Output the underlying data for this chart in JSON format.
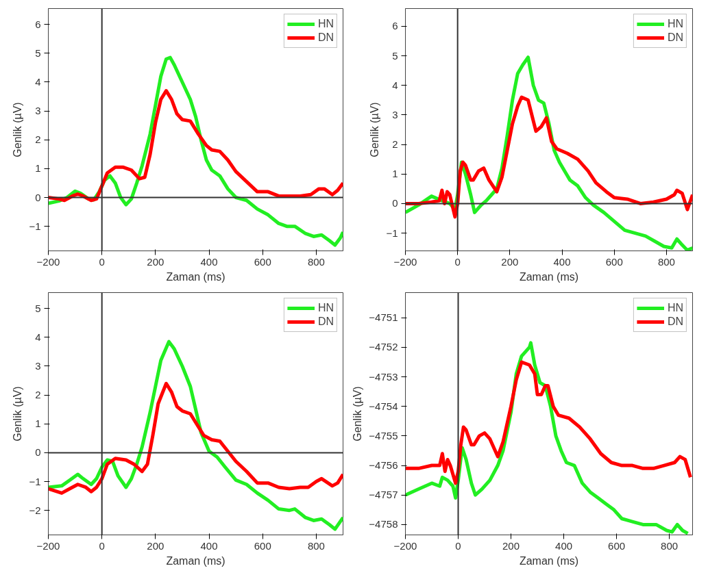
{
  "chart_data": [
    {
      "type": "line",
      "xlabel": "Zaman (ms)",
      "ylabel": "Genlik (µV)",
      "xlim": [
        -200,
        900
      ],
      "ylim": [
        -1.85,
        6.55
      ],
      "xticks": [
        -200,
        0,
        200,
        400,
        600,
        800
      ],
      "yticks": [
        -1,
        0,
        1,
        2,
        3,
        4,
        5,
        6
      ],
      "grid": false,
      "legend": "top right",
      "ref_lines": [
        {
          "axis": "x",
          "value": 0,
          "color": "#333333"
        },
        {
          "axis": "y",
          "value": 0,
          "color": "#333333"
        }
      ],
      "series": [
        {
          "name": "HN",
          "color": "#22ee22",
          "x": [
            -200,
            -160,
            -130,
            -100,
            -80,
            -50,
            -30,
            -10,
            10,
            30,
            50,
            70,
            90,
            110,
            130,
            150,
            180,
            200,
            220,
            240,
            255,
            270,
            300,
            330,
            350,
            370,
            390,
            410,
            440,
            470,
            500,
            540,
            580,
            620,
            660,
            690,
            720,
            760,
            790,
            820,
            850,
            870,
            890,
            900
          ],
          "values": [
            -0.2,
            -0.12,
            0,
            0.22,
            0.15,
            -0.05,
            -0.08,
            0.2,
            0.6,
            0.75,
            0.5,
            0.0,
            -0.25,
            -0.05,
            0.5,
            1.1,
            2.2,
            3.2,
            4.2,
            4.8,
            4.85,
            4.6,
            4.0,
            3.4,
            2.8,
            2.0,
            1.3,
            0.95,
            0.75,
            0.3,
            0.0,
            -0.1,
            -0.4,
            -0.6,
            -0.9,
            -1.0,
            -1.0,
            -1.25,
            -1.35,
            -1.3,
            -1.5,
            -1.65,
            -1.4,
            -1.2
          ]
        },
        {
          "name": "DN",
          "color": "#ff0000",
          "x": [
            -200,
            -160,
            -140,
            -110,
            -90,
            -70,
            -40,
            -20,
            0,
            20,
            50,
            80,
            110,
            140,
            160,
            180,
            200,
            220,
            240,
            260,
            280,
            300,
            330,
            360,
            390,
            410,
            440,
            470,
            500,
            540,
            580,
            620,
            660,
            700,
            740,
            780,
            810,
            830,
            860,
            880,
            900
          ],
          "values": [
            0,
            -0.05,
            -0.1,
            0.05,
            0.12,
            0.05,
            -0.1,
            -0.05,
            0.4,
            0.85,
            1.05,
            1.05,
            0.95,
            0.65,
            0.7,
            1.5,
            2.6,
            3.4,
            3.7,
            3.4,
            2.9,
            2.7,
            2.65,
            2.2,
            1.8,
            1.65,
            1.6,
            1.3,
            0.9,
            0.55,
            0.2,
            0.2,
            0.05,
            0.05,
            0.05,
            0.1,
            0.3,
            0.3,
            0.1,
            0.25,
            0.5
          ]
        }
      ]
    },
    {
      "type": "line",
      "xlabel": "Zaman (ms)",
      "ylabel": "Genlik (µV)",
      "xlim": [
        -200,
        900
      ],
      "ylim": [
        -1.6,
        6.6
      ],
      "xticks": [
        -200,
        0,
        200,
        400,
        600,
        800
      ],
      "yticks": [
        -1,
        0,
        1,
        2,
        3,
        4,
        5,
        6
      ],
      "grid": false,
      "legend": "top right",
      "ref_lines": [
        {
          "axis": "x",
          "value": 0,
          "color": "#333333"
        },
        {
          "axis": "y",
          "value": 0,
          "color": "#333333"
        }
      ],
      "series": [
        {
          "name": "HN",
          "color": "#22ee22",
          "x": [
            -200,
            -150,
            -100,
            -60,
            -30,
            -10,
            0,
            15,
            30,
            50,
            65,
            90,
            110,
            130,
            150,
            170,
            190,
            210,
            230,
            250,
            270,
            290,
            310,
            330,
            350,
            370,
            390,
            410,
            430,
            460,
            490,
            520,
            560,
            600,
            640,
            680,
            720,
            760,
            790,
            820,
            840,
            860,
            880,
            900
          ],
          "values": [
            -0.3,
            -0.05,
            0.25,
            0.1,
            0.0,
            -0.2,
            0.3,
            1.4,
            1.0,
            0.3,
            -0.3,
            -0.05,
            0.1,
            0.3,
            0.5,
            1.2,
            2.3,
            3.5,
            4.4,
            4.7,
            4.95,
            4.0,
            3.5,
            3.4,
            2.7,
            1.8,
            1.4,
            1.1,
            0.8,
            0.6,
            0.2,
            -0.05,
            -0.3,
            -0.6,
            -0.9,
            -1.0,
            -1.1,
            -1.3,
            -1.45,
            -1.5,
            -1.2,
            -1.4,
            -1.58,
            -1.5
          ]
        },
        {
          "name": "DN",
          "color": "#ff0000",
          "x": [
            -200,
            -150,
            -100,
            -70,
            -60,
            -50,
            -40,
            -30,
            -10,
            0,
            10,
            20,
            30,
            50,
            60,
            80,
            100,
            120,
            150,
            170,
            190,
            210,
            230,
            245,
            270,
            290,
            300,
            320,
            340,
            360,
            380,
            420,
            460,
            500,
            530,
            570,
            600,
            650,
            700,
            750,
            800,
            830,
            840,
            860,
            880,
            900
          ],
          "values": [
            0.0,
            0.0,
            0.05,
            0.1,
            0.45,
            0.0,
            0.4,
            0.3,
            -0.45,
            0.0,
            1.1,
            1.4,
            1.3,
            0.8,
            0.8,
            1.1,
            1.2,
            0.8,
            0.4,
            0.9,
            1.8,
            2.7,
            3.3,
            3.6,
            3.5,
            2.8,
            2.45,
            2.6,
            2.9,
            2.1,
            1.85,
            1.7,
            1.5,
            1.1,
            0.7,
            0.4,
            0.2,
            0.15,
            0.0,
            0.05,
            0.15,
            0.3,
            0.45,
            0.35,
            -0.2,
            0.3
          ]
        }
      ]
    },
    {
      "type": "line",
      "xlabel": "Zaman (ms)",
      "ylabel": "Genlik (µV)",
      "xlim": [
        -200,
        900
      ],
      "ylim": [
        -2.85,
        5.55
      ],
      "xticks": [
        -200,
        0,
        200,
        400,
        600,
        800
      ],
      "yticks": [
        -2,
        -1,
        0,
        1,
        2,
        3,
        4,
        5
      ],
      "grid": false,
      "legend": "top right",
      "ref_lines": [
        {
          "axis": "x",
          "value": 0,
          "color": "#333333"
        },
        {
          "axis": "y",
          "value": 0,
          "color": "#333333"
        }
      ],
      "series": [
        {
          "name": "HN",
          "color": "#22ee22",
          "x": [
            -200,
            -150,
            -120,
            -90,
            -70,
            -40,
            -20,
            0,
            20,
            40,
            60,
            90,
            110,
            130,
            150,
            180,
            200,
            220,
            250,
            270,
            300,
            330,
            350,
            370,
            400,
            430,
            460,
            500,
            540,
            580,
            620,
            660,
            700,
            720,
            760,
            790,
            820,
            850,
            870,
            900
          ],
          "values": [
            -1.2,
            -1.15,
            -0.95,
            -0.75,
            -0.9,
            -1.1,
            -0.9,
            -0.5,
            -0.25,
            -0.3,
            -0.8,
            -1.2,
            -0.9,
            -0.4,
            0.2,
            1.4,
            2.3,
            3.2,
            3.85,
            3.6,
            3.0,
            2.3,
            1.5,
            0.7,
            0.05,
            -0.15,
            -0.5,
            -0.95,
            -1.1,
            -1.4,
            -1.65,
            -1.95,
            -2.0,
            -1.95,
            -2.25,
            -2.35,
            -2.3,
            -2.5,
            -2.65,
            -2.25
          ]
        },
        {
          "name": "DN",
          "color": "#ff0000",
          "x": [
            -200,
            -150,
            -120,
            -90,
            -60,
            -40,
            -20,
            0,
            20,
            50,
            90,
            120,
            150,
            170,
            190,
            210,
            240,
            260,
            280,
            300,
            330,
            360,
            380,
            410,
            440,
            470,
            500,
            540,
            580,
            620,
            660,
            700,
            740,
            770,
            800,
            820,
            860,
            880,
            900
          ],
          "values": [
            -1.25,
            -1.4,
            -1.25,
            -1.1,
            -1.2,
            -1.35,
            -1.2,
            -0.9,
            -0.4,
            -0.2,
            -0.25,
            -0.4,
            -0.65,
            -0.4,
            0.6,
            1.7,
            2.4,
            2.1,
            1.6,
            1.45,
            1.35,
            0.9,
            0.6,
            0.45,
            0.4,
            0.05,
            -0.3,
            -0.65,
            -1.05,
            -1.05,
            -1.2,
            -1.25,
            -1.2,
            -1.2,
            -1.0,
            -0.9,
            -1.15,
            -1.05,
            -0.75
          ]
        }
      ]
    },
    {
      "type": "line",
      "xlabel": "Zaman (ms)",
      "ylabel": "Genlik (µV)",
      "xlim": [
        -200,
        888
      ],
      "ylim": [
        -4758.35,
        -4750.15
      ],
      "xticks": [
        -200,
        0,
        200,
        400,
        600,
        800
      ],
      "yticks": [
        -4758,
        -4757,
        -4756,
        -4755,
        -4754,
        -4753,
        -4752,
        -4751
      ],
      "grid": false,
      "legend": "top right",
      "ref_lines": [
        {
          "axis": "x",
          "value": 0,
          "color": "#333333"
        }
      ],
      "series": [
        {
          "name": "HN",
          "color": "#22ee22",
          "x": [
            -200,
            -150,
            -100,
            -70,
            -60,
            -40,
            -20,
            -10,
            0,
            15,
            30,
            50,
            65,
            90,
            120,
            150,
            170,
            200,
            220,
            240,
            270,
            275,
            290,
            310,
            330,
            350,
            370,
            390,
            410,
            440,
            470,
            500,
            530,
            560,
            590,
            620,
            660,
            700,
            750,
            790,
            810,
            830,
            850,
            870
          ],
          "values": [
            -4757.0,
            -4756.8,
            -4756.6,
            -4756.7,
            -4756.4,
            -4756.5,
            -4756.7,
            -4757.1,
            -4756.5,
            -4755.4,
            -4755.8,
            -4756.6,
            -4757.0,
            -4756.8,
            -4756.5,
            -4756.0,
            -4755.5,
            -4754.2,
            -4752.9,
            -4752.3,
            -4752.0,
            -4751.85,
            -4752.6,
            -4753.2,
            -4753.3,
            -4754.0,
            -4755.0,
            -4755.5,
            -4755.9,
            -4756.0,
            -4756.6,
            -4756.9,
            -4757.1,
            -4757.3,
            -4757.5,
            -4757.8,
            -4757.9,
            -4758.0,
            -4758.0,
            -4758.2,
            -4758.25,
            -4758.0,
            -4758.2,
            -4758.3
          ]
        },
        {
          "name": "DN",
          "color": "#ff0000",
          "x": [
            -200,
            -150,
            -100,
            -70,
            -60,
            -50,
            -40,
            -30,
            -10,
            0,
            10,
            20,
            30,
            50,
            60,
            80,
            100,
            120,
            150,
            170,
            200,
            220,
            240,
            270,
            290,
            300,
            315,
            330,
            340,
            360,
            380,
            420,
            460,
            500,
            540,
            580,
            620,
            660,
            700,
            740,
            780,
            820,
            840,
            860,
            880
          ],
          "values": [
            -4756.1,
            -4756.1,
            -4756.0,
            -4756.0,
            -4755.6,
            -4756.2,
            -4755.8,
            -4756.0,
            -4756.6,
            -4756.2,
            -4755.3,
            -4754.7,
            -4754.8,
            -4755.3,
            -4755.3,
            -4755.0,
            -4754.9,
            -4755.1,
            -4755.7,
            -4755.2,
            -4754.0,
            -4753.1,
            -4752.5,
            -4752.6,
            -4752.9,
            -4753.6,
            -4753.6,
            -4753.3,
            -4753.3,
            -4754.0,
            -4754.3,
            -4754.4,
            -4754.7,
            -4755.1,
            -4755.6,
            -4755.9,
            -4756.0,
            -4756.0,
            -4756.1,
            -4756.1,
            -4756.0,
            -4755.9,
            -4755.7,
            -4755.8,
            -4756.4
          ]
        }
      ]
    }
  ]
}
